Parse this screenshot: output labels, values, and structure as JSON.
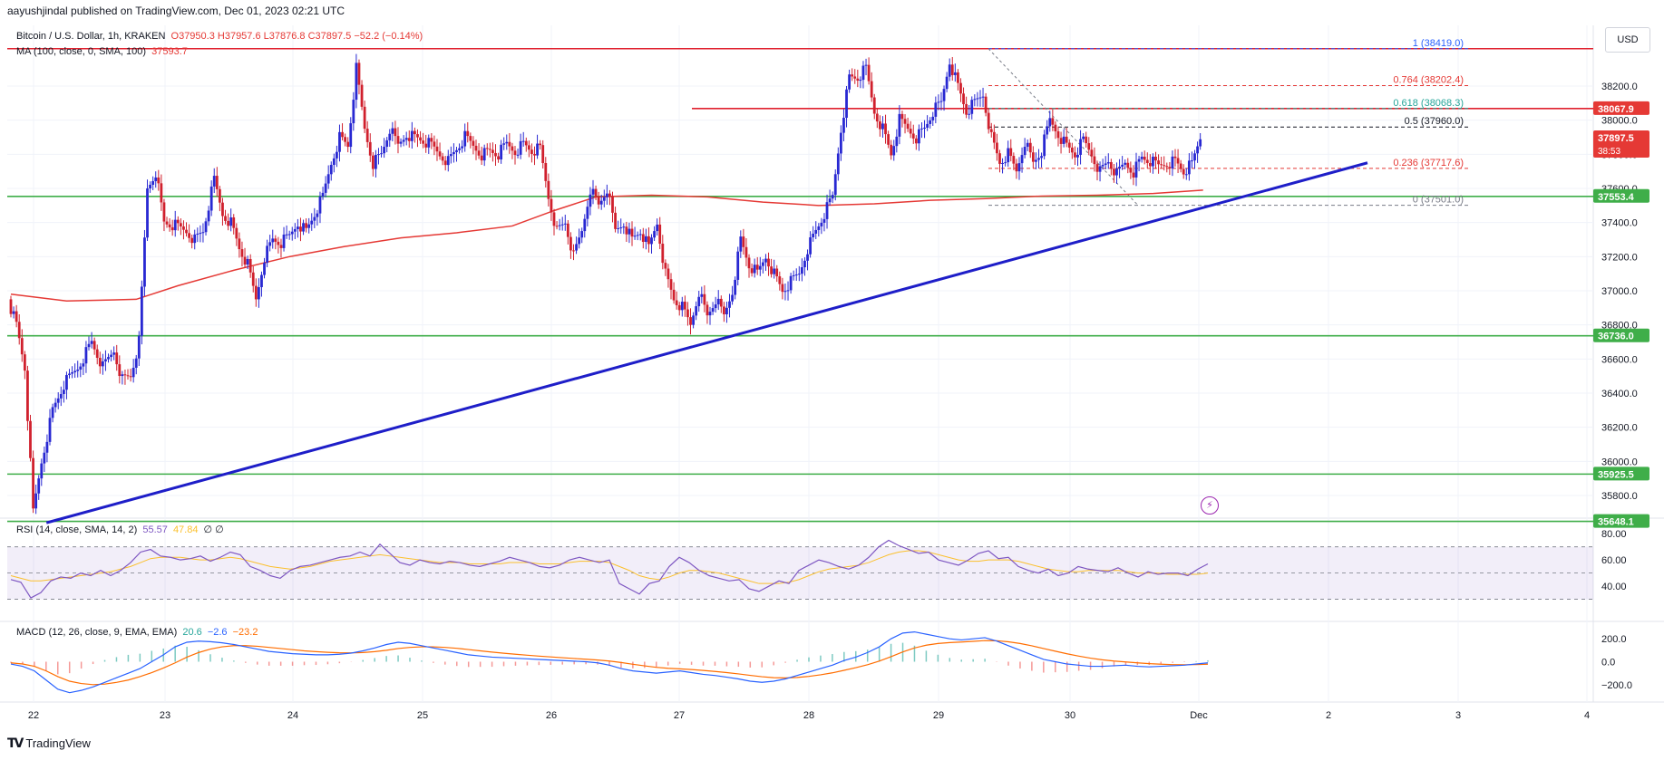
{
  "header": {
    "published": "aayushjindal published on TradingView.com, Dec 01, 2023 02:21 UTC"
  },
  "legend": {
    "symbol": "Bitcoin / U.S. Dollar, 1h, KRAKEN",
    "ohlc": "O37950.3 H37957.6 L37876.8 C37897.5 −52.2 (−0.14%)",
    "ma": "MA (100, close, 0, SMA, 100)",
    "ma_value": "37593.7",
    "rsi": "RSI (14, close, SMA, 14, 2)",
    "rsi_value": "55.57",
    "rsi_sma": "47.84",
    "rsi_extra": "∅ ∅",
    "macd": "MACD (12, 26, close, 9, EMA, EMA)",
    "macd_hist": "20.6",
    "macd_line": "−2.6",
    "macd_signal": "−23.2"
  },
  "currency_button": "USD",
  "footer": {
    "brand": "TradingView"
  },
  "icons": {
    "alert": "lightning-icon",
    "logo": "tradingview-logo-icon"
  },
  "colors": {
    "up": "#2828d2",
    "down": "#d0202d",
    "support": "#3fae49",
    "resistance": "#e0212f",
    "trend": "#1e1ec8",
    "ma": "#e53935",
    "rsi": "#7e57c2",
    "rsi_sma": "#fbc02d",
    "macd": "#2962ff",
    "signal": "#ff6d00",
    "fib": "#e53935"
  },
  "chart_data": {
    "type": "candlestick",
    "title": "Bitcoin / U.S. Dollar, 1h, KRAKEN",
    "x_labels": [
      "22",
      "23",
      "24",
      "25",
      "26",
      "27",
      "28",
      "29",
      "30",
      "Dec",
      "2",
      "3",
      "4"
    ],
    "price_ticks": [
      "38200.0",
      "38000.0",
      "37800.0",
      "37600.0",
      "37400.0",
      "37200.0",
      "37000.0",
      "36800.0",
      "36600.0",
      "36400.0",
      "36200.0",
      "36000.0",
      "35800.0"
    ],
    "ylim": [
      35500,
      38500
    ],
    "ohlc_path": [
      [
        0,
        36950
      ],
      [
        3,
        36800
      ],
      [
        6,
        36550
      ],
      [
        9,
        35700
      ],
      [
        12,
        36000
      ],
      [
        16,
        36300
      ],
      [
        20,
        36450
      ],
      [
        25,
        36550
      ],
      [
        30,
        36700
      ],
      [
        34,
        36550
      ],
      [
        38,
        36650
      ],
      [
        41,
        36480
      ],
      [
        44,
        36500
      ],
      [
        47,
        36700
      ],
      [
        50,
        37600
      ],
      [
        53,
        37700
      ],
      [
        56,
        37400
      ],
      [
        60,
        37380
      ],
      [
        64,
        37350
      ],
      [
        67,
        37300
      ],
      [
        70,
        37350
      ],
      [
        74,
        37650
      ],
      [
        77,
        37450
      ],
      [
        80,
        37400
      ],
      [
        83,
        37250
      ],
      [
        86,
        37150
      ],
      [
        89,
        36950
      ],
      [
        92,
        37200
      ],
      [
        95,
        37300
      ],
      [
        98,
        37280
      ],
      [
        101,
        37320
      ],
      [
        104,
        37400
      ],
      [
        107,
        37350
      ],
      [
        110,
        37450
      ],
      [
        113,
        37550
      ],
      [
        116,
        37750
      ],
      [
        119,
        37900
      ],
      [
        122,
        37850
      ],
      [
        125,
        38300
      ],
      [
        128,
        37950
      ],
      [
        131,
        37750
      ],
      [
        134,
        37800
      ],
      [
        137,
        37950
      ],
      [
        140,
        37850
      ],
      [
        143,
        37920
      ],
      [
        146,
        37900
      ],
      [
        149,
        37880
      ],
      [
        152,
        37850
      ],
      [
        155,
        37800
      ],
      [
        158,
        37760
      ],
      [
        161,
        37830
      ],
      [
        164,
        37900
      ],
      [
        167,
        37850
      ],
      [
        170,
        37800
      ],
      [
        173,
        37820
      ],
      [
        176,
        37800
      ],
      [
        179,
        37860
      ],
      [
        182,
        37820
      ],
      [
        185,
        37860
      ],
      [
        188,
        37820
      ],
      [
        191,
        37830
      ],
      [
        194,
        37550
      ],
      [
        197,
        37350
      ],
      [
        200,
        37400
      ],
      [
        203,
        37200
      ],
      [
        206,
        37350
      ],
      [
        209,
        37600
      ],
      [
        212,
        37500
      ],
      [
        215,
        37600
      ],
      [
        218,
        37350
      ],
      [
        221,
        37400
      ],
      [
        224,
        37300
      ],
      [
        227,
        37350
      ],
      [
        230,
        37250
      ],
      [
        233,
        37400
      ],
      [
        236,
        37100
      ],
      [
        239,
        36950
      ],
      [
        242,
        36900
      ],
      [
        245,
        36800
      ],
      [
        248,
        37000
      ],
      [
        251,
        36850
      ],
      [
        254,
        36950
      ],
      [
        257,
        36850
      ],
      [
        260,
        37000
      ],
      [
        263,
        37300
      ],
      [
        266,
        37150
      ],
      [
        269,
        37100
      ],
      [
        272,
        37200
      ],
      [
        275,
        37100
      ],
      [
        278,
        37000
      ],
      [
        281,
        37050
      ],
      [
        284,
        37100
      ],
      [
        287,
        37250
      ],
      [
        290,
        37350
      ],
      [
        293,
        37450
      ],
      [
        296,
        37550
      ],
      [
        299,
        37950
      ],
      [
        302,
        38250
      ],
      [
        305,
        38250
      ],
      [
        308,
        38300
      ],
      [
        311,
        38050
      ],
      [
        314,
        37950
      ],
      [
        317,
        37800
      ],
      [
        320,
        38000
      ],
      [
        323,
        37950
      ],
      [
        326,
        37900
      ],
      [
        329,
        37950
      ],
      [
        332,
        38050
      ],
      [
        335,
        38100
      ],
      [
        338,
        38350
      ],
      [
        341,
        38200
      ],
      [
        344,
        38050
      ],
      [
        347,
        38100
      ],
      [
        350,
        38150
      ],
      [
        353,
        37900
      ],
      [
        356,
        37750
      ],
      [
        359,
        37800
      ],
      [
        362,
        37700
      ],
      [
        365,
        37880
      ],
      [
        368,
        37750
      ],
      [
        371,
        37820
      ],
      [
        374,
        38000
      ],
      [
        377,
        37920
      ],
      [
        380,
        37850
      ],
      [
        383,
        37800
      ],
      [
        386,
        37880
      ],
      [
        389,
        37800
      ],
      [
        392,
        37700
      ],
      [
        395,
        37760
      ],
      [
        398,
        37680
      ],
      [
        401,
        37750
      ],
      [
        404,
        37700
      ],
      [
        407,
        37780
      ],
      [
        410,
        37760
      ],
      [
        413,
        37730
      ],
      [
        416,
        37750
      ],
      [
        419,
        37760
      ],
      [
        422,
        37700
      ],
      [
        425,
        37740
      ],
      [
        428,
        37900
      ]
    ],
    "ma100_path": [
      [
        0,
        36980
      ],
      [
        20,
        36940
      ],
      [
        45,
        36950
      ],
      [
        60,
        37030
      ],
      [
        80,
        37120
      ],
      [
        100,
        37200
      ],
      [
        120,
        37260
      ],
      [
        140,
        37310
      ],
      [
        160,
        37340
      ],
      [
        180,
        37380
      ],
      [
        195,
        37470
      ],
      [
        210,
        37550
      ],
      [
        230,
        37560
      ],
      [
        250,
        37550
      ],
      [
        270,
        37520
      ],
      [
        290,
        37500
      ],
      [
        310,
        37510
      ],
      [
        330,
        37530
      ],
      [
        350,
        37540
      ],
      [
        370,
        37555
      ],
      [
        390,
        37560
      ],
      [
        410,
        37570
      ],
      [
        428,
        37590
      ]
    ],
    "horizontal_levels": [
      {
        "price": 38419,
        "color": "resistance",
        "label": ""
      },
      {
        "price": 38068,
        "color": "resistance",
        "label": ""
      },
      {
        "price": 37553.4,
        "color": "support",
        "label": ""
      },
      {
        "price": 36736,
        "color": "support",
        "label": ""
      },
      {
        "price": 35925.5,
        "color": "support",
        "label": ""
      },
      {
        "price": 35648.1,
        "color": "support",
        "label": ""
      }
    ],
    "fib_levels": [
      {
        "label": "1 (38419.0)",
        "price": 38419.0,
        "color": "#2962ff"
      },
      {
        "label": "0.764 (38202.4)",
        "price": 38202.4,
        "color": "#e53935"
      },
      {
        "label": "0.618 (38068.3)",
        "price": 38068.3,
        "color": "#26a69a"
      },
      {
        "label": "0.5 (37960.0)",
        "price": 37960.0,
        "color": "#131722"
      },
      {
        "label": "0.236 (37717.6)",
        "price": 37717.6,
        "color": "#e53935"
      },
      {
        "label": "0 (37501.0)",
        "price": 37501.0,
        "color": "#787b86"
      }
    ],
    "price_tags": [
      {
        "text": "38067.9",
        "price": 38067.9,
        "bg": "#e53935"
      },
      {
        "text": "37897.5",
        "price": 37897.5,
        "bg": "#e53935",
        "sub": "38:53"
      },
      {
        "text": "37553.4",
        "price": 37553.4,
        "bg": "#3fae49"
      },
      {
        "text": "36736.0",
        "price": 36736.0,
        "bg": "#3fae49"
      },
      {
        "text": "35925.5",
        "price": 35925.5,
        "bg": "#3fae49"
      },
      {
        "text": "35648.1",
        "price": 35648.1,
        "bg": "#3fae49"
      }
    ],
    "trendline": {
      "from": [
        3,
        35640
      ],
      "to": [
        431,
        37750
      ]
    },
    "rsi": {
      "ticks": [
        "80.00",
        "60.00",
        "40.00"
      ],
      "ylim": [
        20,
        85
      ],
      "band": [
        30,
        70
      ],
      "values": [
        45,
        43,
        31,
        35,
        44,
        47,
        46,
        50,
        48,
        52,
        48,
        52,
        58,
        66,
        68,
        63,
        62,
        60,
        61,
        63,
        59,
        62,
        66,
        64,
        55,
        52,
        48,
        46,
        52,
        55,
        56,
        58,
        60,
        62,
        63,
        66,
        63,
        72,
        65,
        58,
        56,
        60,
        58,
        57,
        59,
        58,
        56,
        55,
        57,
        59,
        62,
        60,
        58,
        55,
        54,
        56,
        60,
        62,
        60,
        58,
        60,
        42,
        38,
        34,
        42,
        44,
        55,
        62,
        58,
        52,
        48,
        46,
        44,
        45,
        38,
        36,
        40,
        44,
        42,
        52,
        56,
        60,
        58,
        55,
        53,
        56,
        62,
        70,
        75,
        71,
        68,
        65,
        66,
        60,
        58,
        56,
        60,
        65,
        67,
        61,
        62,
        55,
        52,
        50,
        53,
        48,
        50,
        55,
        53,
        52,
        51,
        54,
        50,
        47,
        51,
        49,
        50,
        50,
        48,
        53,
        57
      ],
      "sma": [
        48,
        46,
        44,
        44,
        45,
        46,
        47,
        48,
        49,
        50,
        51,
        53,
        55,
        58,
        61,
        62,
        62,
        62,
        61,
        60,
        60,
        61,
        62,
        61,
        59,
        57,
        55,
        54,
        53,
        54,
        55,
        57,
        59,
        60,
        61,
        62,
        63,
        64,
        63,
        62,
        61,
        60,
        59,
        58,
        58,
        58,
        57,
        57,
        57,
        57,
        58,
        58,
        58,
        57,
        57,
        57,
        58,
        59,
        59,
        59,
        58,
        55,
        52,
        48,
        46,
        45,
        47,
        50,
        52,
        52,
        51,
        50,
        48,
        46,
        44,
        42,
        42,
        42,
        43,
        45,
        48,
        51,
        53,
        54,
        55,
        56,
        58,
        61,
        64,
        66,
        67,
        67,
        66,
        64,
        62,
        60,
        59,
        59,
        60,
        60,
        60,
        59,
        57,
        55,
        53,
        52,
        51,
        51,
        52,
        52,
        52,
        52,
        51,
        50,
        50,
        50,
        49,
        49,
        49,
        49,
        50
      ]
    },
    "macd": {
      "ticks": [
        "200.0",
        "0.0",
        "−200.0"
      ],
      "ylim": [
        -320,
        320
      ],
      "macd": [
        -20,
        -40,
        -80,
        -160,
        -240,
        -270,
        -250,
        -220,
        -180,
        -140,
        -100,
        -60,
        0,
        60,
        130,
        170,
        180,
        175,
        165,
        150,
        130,
        110,
        90,
        80,
        70,
        65,
        60,
        60,
        65,
        75,
        95,
        120,
        150,
        170,
        160,
        140,
        120,
        100,
        80,
        60,
        50,
        40,
        35,
        30,
        25,
        20,
        15,
        10,
        5,
        0,
        -10,
        -30,
        -60,
        -80,
        -90,
        -100,
        -90,
        -80,
        -95,
        -110,
        -120,
        -135,
        -150,
        -170,
        -180,
        -170,
        -150,
        -120,
        -90,
        -60,
        -30,
        10,
        40,
        80,
        130,
        200,
        250,
        260,
        240,
        220,
        200,
        190,
        200,
        210,
        180,
        140,
        100,
        60,
        20,
        0,
        -20,
        -30,
        -40,
        -40,
        -35,
        -30,
        -40,
        -45,
        -40,
        -35,
        -30,
        -20,
        -10
      ],
      "signal": [
        -10,
        -20,
        -40,
        -80,
        -130,
        -170,
        -190,
        -200,
        -195,
        -180,
        -160,
        -130,
        -95,
        -55,
        -10,
        40,
        80,
        110,
        130,
        140,
        140,
        135,
        125,
        115,
        105,
        95,
        88,
        82,
        78,
        77,
        80,
        88,
        100,
        115,
        125,
        130,
        130,
        125,
        117,
        106,
        95,
        84,
        74,
        65,
        57,
        49,
        42,
        35,
        28,
        22,
        15,
        6,
        -7,
        -22,
        -36,
        -49,
        -57,
        -62,
        -68,
        -76,
        -85,
        -95,
        -106,
        -119,
        -131,
        -139,
        -141,
        -137,
        -128,
        -114,
        -97,
        -75,
        -52,
        -26,
        5,
        44,
        85,
        120,
        144,
        159,
        167,
        172,
        178,
        184,
        183,
        174,
        159,
        139,
        115,
        92,
        69,
        49,
        31,
        17,
        6,
        -2,
        -10,
        -17,
        -22,
        -25,
        -26,
        -25,
        -22
      ]
    }
  }
}
